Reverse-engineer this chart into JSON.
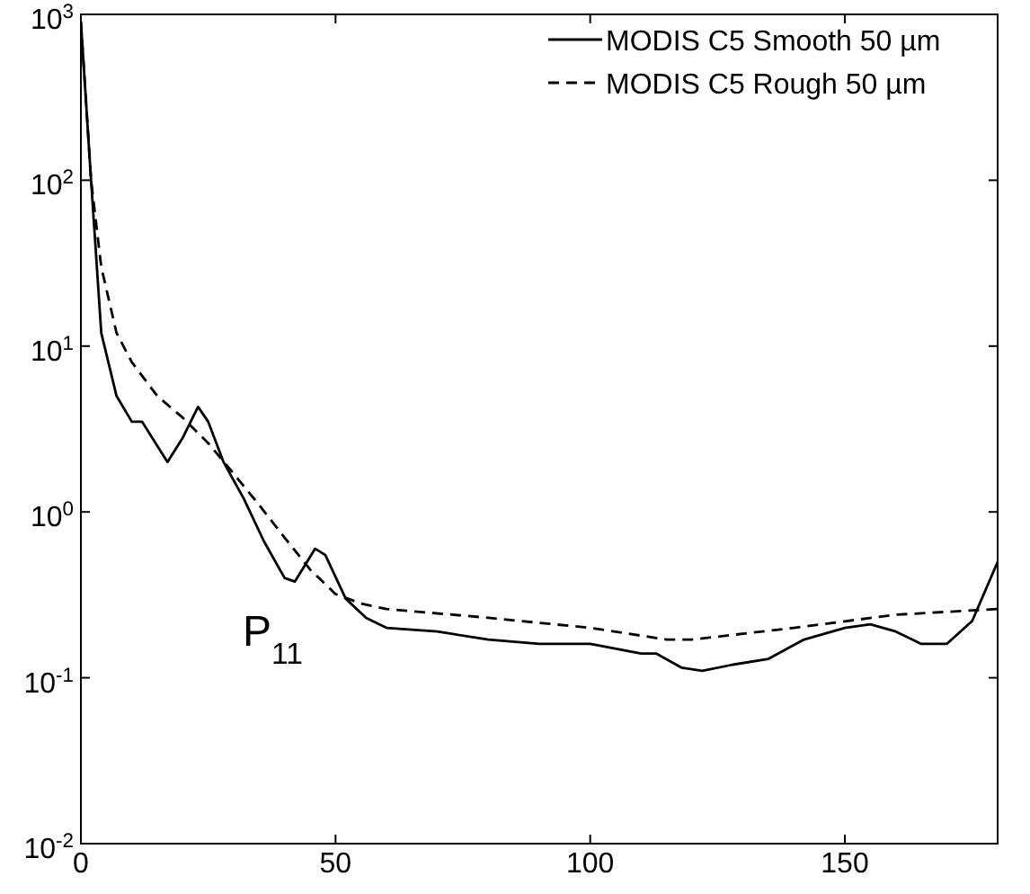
{
  "chart_data": {
    "type": "line",
    "log": "y",
    "xlim": [
      0,
      180
    ],
    "ylim": [
      0.01,
      1000
    ],
    "xticks": [
      0,
      50,
      100,
      150
    ],
    "yticks": [
      {
        "value": 0.01,
        "label": "10$^{-2}$"
      },
      {
        "value": 0.1,
        "label": "10$^{-1}$"
      },
      {
        "value": 1,
        "label": "10$^{0}$"
      },
      {
        "value": 10,
        "label": "10$^{1}$"
      },
      {
        "value": 100,
        "label": "10$^{2}$"
      },
      {
        "value": 1000,
        "label": "10$^{3}$"
      }
    ],
    "grid": false,
    "legend": "top right",
    "annotations": [
      "P$_{11}$"
    ],
    "series": [
      {
        "name": "MODIS C5 Smooth 50 µm",
        "color": "#000000",
        "line_style": "solid",
        "x": [
          0,
          2,
          4,
          7,
          10,
          12,
          14,
          17,
          20,
          23,
          25,
          28,
          32,
          36,
          40,
          42,
          46,
          48,
          52,
          56,
          60,
          70,
          80,
          90,
          100,
          110,
          113,
          118,
          122,
          128,
          135,
          142,
          150,
          155,
          160,
          165,
          170,
          175,
          180
        ],
        "values": [
          900,
          100,
          12,
          5,
          3.5,
          3.5,
          2.8,
          2,
          2.8,
          4.3,
          3.5,
          2,
          1.2,
          0.66,
          0.4,
          0.38,
          0.6,
          0.55,
          0.3,
          0.23,
          0.2,
          0.19,
          0.17,
          0.16,
          0.16,
          0.14,
          0.14,
          0.115,
          0.11,
          0.12,
          0.13,
          0.17,
          0.2,
          0.21,
          0.19,
          0.16,
          0.16,
          0.22,
          0.5
        ]
      },
      {
        "name": "MODIS C5 Rough 50 µm",
        "color": "#000000",
        "line_style": "dashed",
        "x": [
          0,
          2,
          4,
          7,
          10,
          15,
          20,
          25,
          30,
          35,
          40,
          45,
          50,
          55,
          60,
          80,
          100,
          115,
          120,
          140,
          160,
          180
        ],
        "values": [
          900,
          100,
          30,
          12,
          8,
          5,
          3.7,
          2.6,
          1.7,
          1.1,
          0.7,
          0.45,
          0.32,
          0.28,
          0.26,
          0.23,
          0.2,
          0.17,
          0.17,
          0.2,
          0.24,
          0.26
        ]
      }
    ]
  }
}
